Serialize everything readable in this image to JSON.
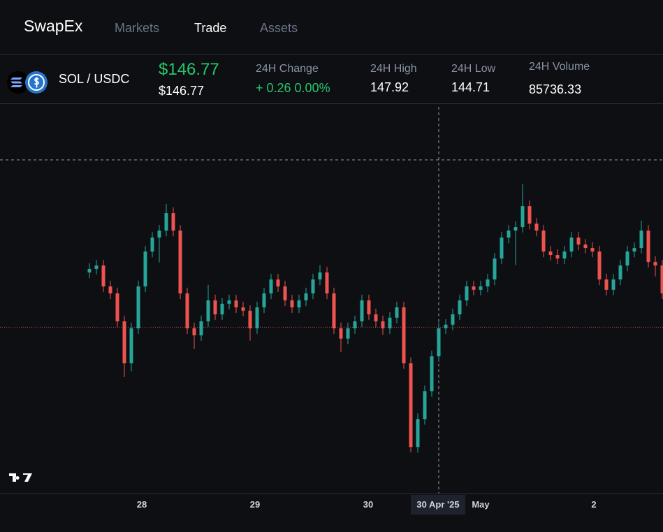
{
  "nav": {
    "brand": "SwapEx",
    "links": [
      "Markets",
      "Trade",
      "Assets"
    ]
  },
  "ticker": {
    "pair": "SOL / USDC",
    "price": "$146.77",
    "price_secondary": "$146.77",
    "stats": [
      {
        "label": "24H Change",
        "value": "+ 0.26 0.00%"
      },
      {
        "label": "24H High",
        "value": "147.92"
      },
      {
        "label": "24H Low",
        "value": "144.71"
      },
      {
        "label": "24H Volume",
        "value": "85736.33"
      }
    ]
  },
  "chart_data": {
    "type": "candlestick",
    "open": [
      148.74,
      148.87,
      148.99,
      148.24,
      147.99,
      146.99,
      145.49,
      146.74,
      148.24,
      149.49,
      149.99,
      150.24,
      150.87,
      150.24,
      147.99,
      146.74,
      146.49,
      146.99,
      147.74,
      147.24,
      147.62,
      147.74,
      147.49,
      147.37,
      146.74,
      147.49,
      147.99,
      148.49,
      148.24,
      147.74,
      147.49,
      147.74,
      147.99,
      148.49,
      148.74,
      147.99,
      146.74,
      146.37,
      146.74,
      146.99,
      147.74,
      147.24,
      146.99,
      146.74,
      147.12,
      147.49,
      145.49,
      142.49,
      143.49,
      144.49,
      145.74,
      146.74,
      146.87,
      147.24,
      147.74,
      148.24,
      148.12,
      148.24,
      148.49,
      149.24,
      149.99,
      150.24,
      150.37,
      151.12,
      150.49,
      150.24,
      149.49,
      149.37,
      149.24,
      149.49,
      149.99,
      149.74,
      149.62,
      149.49,
      148.49,
      148.12,
      148.49,
      148.99,
      149.49,
      149.62,
      150.24,
      149.12,
      148.99
    ],
    "high": [
      149.07,
      149.19,
      149.19,
      148.44,
      148.19,
      147.19,
      146.94,
      148.44,
      149.69,
      150.19,
      150.44,
      151.2,
      151.07,
      150.44,
      148.19,
      146.94,
      147.19,
      148.3,
      147.94,
      147.82,
      147.94,
      147.94,
      147.69,
      147.57,
      147.69,
      148.19,
      148.69,
      148.69,
      148.44,
      147.94,
      147.94,
      148.19,
      148.69,
      149.0,
      148.94,
      148.19,
      146.94,
      146.94,
      147.19,
      147.94,
      147.94,
      147.44,
      147.19,
      147.32,
      147.69,
      147.69,
      145.69,
      143.69,
      144.69,
      145.94,
      146.94,
      147.07,
      147.44,
      147.94,
      148.44,
      148.44,
      148.44,
      148.69,
      149.44,
      150.19,
      150.44,
      150.57,
      151.9,
      151.32,
      150.69,
      150.44,
      149.69,
      149.57,
      149.69,
      150.19,
      150.19,
      149.94,
      149.82,
      149.69,
      148.69,
      148.69,
      149.19,
      149.69,
      149.82,
      150.6,
      150.44,
      149.32,
      149.19
    ],
    "low": [
      148.54,
      148.67,
      148.04,
      147.79,
      146.79,
      145.0,
      145.2,
      146.54,
      148.04,
      149.29,
      149.1,
      150.04,
      150.04,
      147.79,
      146.54,
      146.0,
      146.29,
      146.79,
      147.04,
      147.04,
      147.42,
      147.29,
      147.17,
      146.3,
      146.54,
      147.29,
      147.79,
      148.04,
      147.54,
      147.29,
      147.29,
      147.54,
      147.79,
      148.29,
      147.79,
      146.54,
      145.9,
      146.17,
      146.54,
      146.79,
      147.04,
      146.79,
      146.5,
      146.54,
      146.92,
      145.29,
      142.3,
      142.29,
      143.29,
      144.29,
      145.54,
      146.54,
      146.67,
      147.04,
      147.54,
      147.92,
      147.92,
      148.04,
      148.29,
      149.04,
      149.79,
      149.0,
      150.17,
      150.29,
      150.04,
      149.29,
      149.17,
      149.04,
      149.04,
      149.29,
      149.54,
      149.42,
      149.29,
      148.29,
      147.92,
      147.92,
      148.29,
      148.79,
      149.29,
      149.42,
      148.92,
      148.6,
      147.79
    ],
    "close": [
      148.87,
      148.99,
      148.24,
      147.99,
      146.99,
      145.49,
      146.74,
      148.24,
      149.49,
      149.99,
      150.24,
      150.87,
      150.24,
      147.99,
      146.74,
      146.49,
      146.99,
      147.74,
      147.24,
      147.62,
      147.74,
      147.49,
      147.37,
      146.74,
      147.49,
      147.99,
      148.49,
      148.24,
      147.74,
      147.49,
      147.74,
      147.99,
      148.49,
      148.74,
      147.99,
      146.74,
      146.37,
      146.74,
      146.99,
      147.74,
      147.24,
      146.99,
      146.74,
      147.12,
      147.49,
      145.49,
      142.49,
      143.49,
      144.49,
      145.74,
      146.74,
      146.87,
      147.24,
      147.74,
      148.24,
      148.12,
      148.24,
      148.49,
      149.24,
      149.99,
      150.24,
      150.37,
      151.12,
      150.49,
      150.24,
      149.49,
      149.37,
      149.24,
      149.49,
      149.99,
      149.74,
      149.62,
      149.49,
      148.49,
      148.12,
      148.49,
      148.99,
      149.49,
      149.62,
      150.24,
      149.12,
      148.99,
      147.99
    ],
    "ylim": [
      140.87,
      154.75
    ],
    "up_color": "#26a69a",
    "down_color": "#ef5350",
    "time_labels": [
      "28",
      "29",
      "30",
      "30 Apr '25",
      "May",
      "2"
    ]
  }
}
